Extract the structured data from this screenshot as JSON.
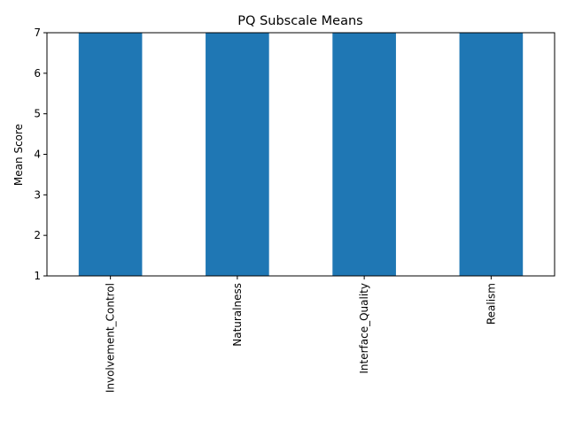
{
  "chart_data": {
    "type": "bar",
    "title": "PQ Subscale Means",
    "xlabel": "",
    "ylabel": "Mean Score",
    "categories": [
      "Involvement_Control",
      "Naturalness",
      "Interface_Quality",
      "Realism"
    ],
    "values": [
      7,
      7,
      7,
      7
    ],
    "ylim": [
      1,
      7
    ],
    "yticks": [
      1,
      2,
      3,
      4,
      5,
      6,
      7
    ],
    "grid": false,
    "legend": "none",
    "bar_color": "#1f77b4",
    "x_tick_rotation": "vertical"
  }
}
